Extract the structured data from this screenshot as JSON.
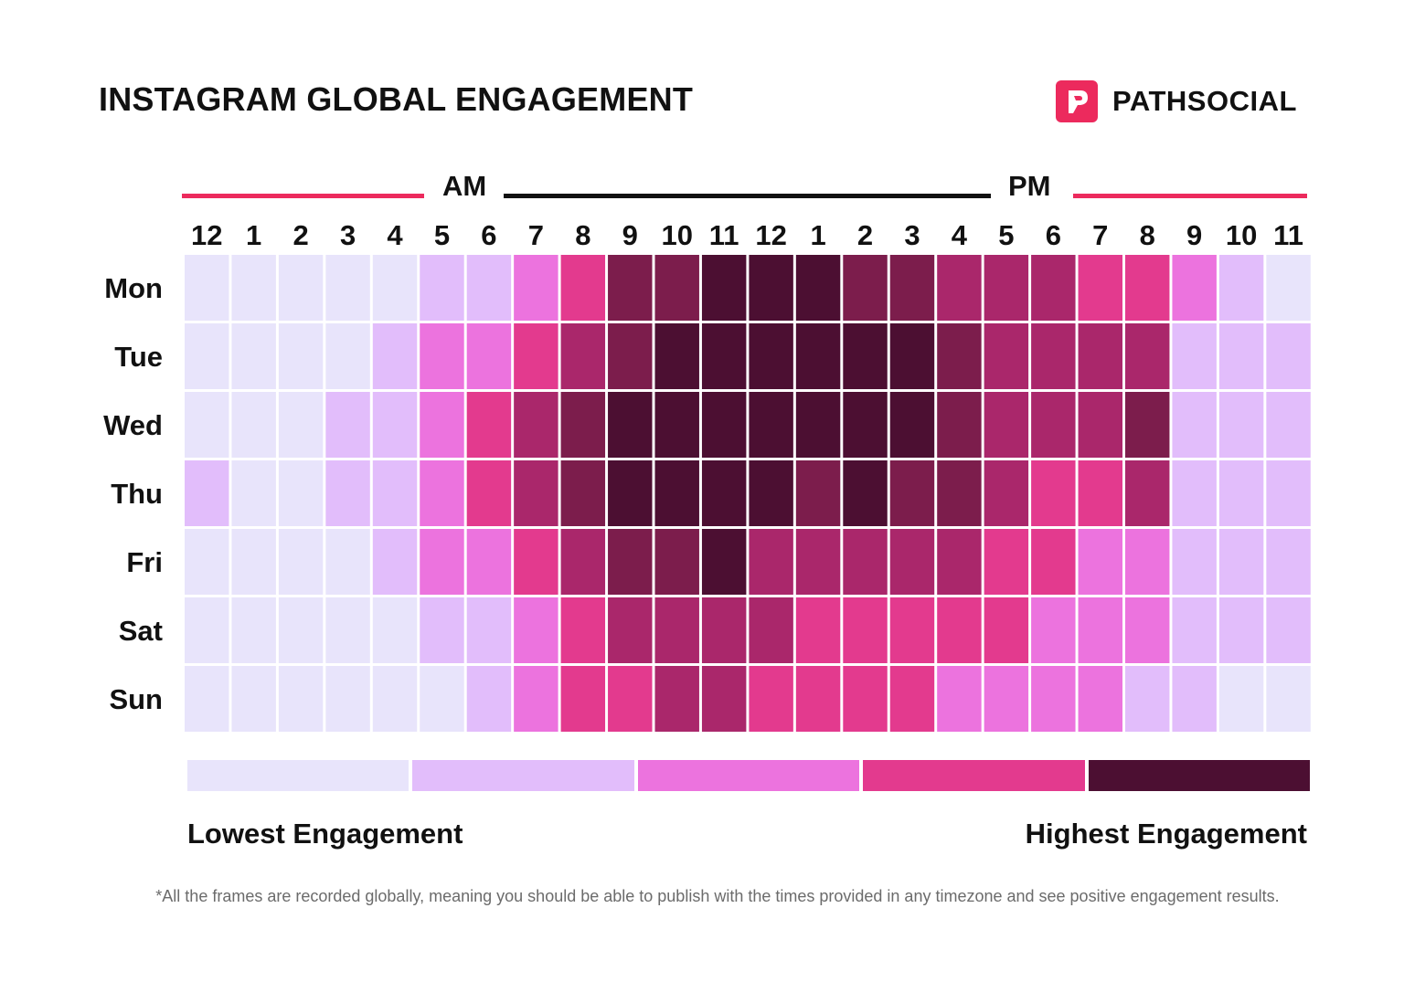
{
  "header": {
    "title": "INSTAGRAM GLOBAL ENGAGEMENT",
    "brand_name": "PATHSOCIAL",
    "brand_color": "#ec2a5d"
  },
  "periods": {
    "am": "AM",
    "pm": "PM"
  },
  "legend": {
    "low_label": "Lowest Engagement",
    "high_label": "Highest Engagement",
    "colors": [
      "#e8e4fb",
      "#e2bdfb",
      "#ec73de",
      "#e33a8e",
      "#4c0f32"
    ]
  },
  "footnote": "*All the frames are recorded globally, meaning you should be able to publish with the times provided in any timezone and see positive engagement results.",
  "chart_data": {
    "type": "heatmap",
    "x": [
      "12",
      "1",
      "2",
      "3",
      "4",
      "5",
      "6",
      "7",
      "8",
      "9",
      "10",
      "11",
      "12",
      "1",
      "2",
      "3",
      "4",
      "5",
      "6",
      "7",
      "8",
      "9",
      "10",
      "11"
    ],
    "y": [
      "Mon",
      "Tue",
      "Wed",
      "Thu",
      "Fri",
      "Sat",
      "Sun"
    ],
    "scale_levels": 7,
    "level_colors": [
      "#e8e4fb",
      "#e2bdfb",
      "#ec73de",
      "#e33a8e",
      "#aa276b",
      "#7c1d4c",
      "#4c0f32"
    ],
    "values": [
      [
        0,
        0,
        0,
        0,
        0,
        1,
        1,
        2,
        3,
        5,
        5,
        6,
        6,
        6,
        5,
        5,
        4,
        4,
        4,
        3,
        3,
        2,
        1,
        0
      ],
      [
        0,
        0,
        0,
        0,
        1,
        2,
        2,
        3,
        4,
        5,
        6,
        6,
        6,
        6,
        6,
        6,
        5,
        4,
        4,
        4,
        4,
        1,
        1,
        1
      ],
      [
        0,
        0,
        0,
        1,
        1,
        2,
        3,
        4,
        5,
        6,
        6,
        6,
        6,
        6,
        6,
        6,
        5,
        4,
        4,
        4,
        5,
        1,
        1,
        1
      ],
      [
        1,
        0,
        0,
        1,
        1,
        2,
        3,
        4,
        5,
        6,
        6,
        6,
        6,
        5,
        6,
        5,
        5,
        4,
        3,
        3,
        4,
        1,
        1,
        1
      ],
      [
        0,
        0,
        0,
        0,
        1,
        2,
        2,
        3,
        4,
        5,
        5,
        6,
        4,
        4,
        4,
        4,
        4,
        3,
        3,
        2,
        2,
        1,
        1,
        1
      ],
      [
        0,
        0,
        0,
        0,
        0,
        1,
        1,
        2,
        3,
        4,
        4,
        4,
        4,
        3,
        3,
        3,
        3,
        3,
        2,
        2,
        2,
        1,
        1,
        1
      ],
      [
        0,
        0,
        0,
        0,
        0,
        0,
        1,
        2,
        3,
        3,
        4,
        4,
        3,
        3,
        3,
        3,
        2,
        2,
        2,
        2,
        1,
        1,
        0,
        0
      ]
    ]
  }
}
